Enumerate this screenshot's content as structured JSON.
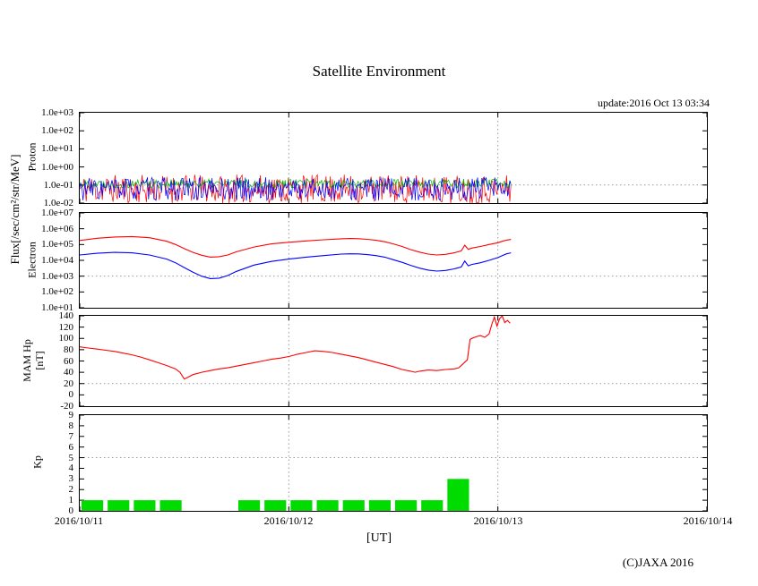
{
  "title": "Satellite Environment",
  "update_text": "update:2016 Oct 13 03:34",
  "copyright": "(C)JAXA 2016",
  "xlabel": "[UT]",
  "flux_axis_label": "Flux[/sec/cm²/str/MeV]",
  "x_ticks": [
    "2016/10/11",
    "2016/10/12",
    "2016/10/13",
    "2016/10/14"
  ],
  "colors": {
    "red": "#ff0000",
    "blue": "#0000ff",
    "green": "#00b400",
    "kp_bar": "#00dc00",
    "grid": "#999999",
    "axis": "#000000"
  },
  "chart_data": [
    {
      "id": "proton",
      "type": "line",
      "ylabel": "Proton",
      "yscale": "log",
      "ylim": [
        0.01,
        1000
      ],
      "ytick_labels": [
        "1.0e+03",
        "1.0e+02",
        "1.0e+01",
        "1.0e+00",
        "1.0e-01",
        "1.0e-02"
      ],
      "grid_y": [
        0.1
      ],
      "x_range_hours": [
        0,
        72
      ],
      "data_end_hour": 49.5,
      "series": [
        {
          "name": "proton-red",
          "color": "#ff0000",
          "noise": {
            "baseline": 0.06,
            "spread_decades": 1.6,
            "seed": 11
          }
        },
        {
          "name": "proton-green",
          "color": "#00b400",
          "noise": {
            "baseline": 0.12,
            "spread_decades": 0.5,
            "seed": 22
          }
        },
        {
          "name": "proton-blue",
          "color": "#0000ff",
          "noise": {
            "baseline": 0.06,
            "spread_decades": 1.3,
            "seed": 33
          }
        }
      ]
    },
    {
      "id": "electron",
      "type": "line",
      "ylabel": "Electron",
      "yscale": "log",
      "ylim": [
        10,
        10000000
      ],
      "ytick_labels": [
        "1.0e+07",
        "1.0e+06",
        "1.0e+05",
        "1.0e+04",
        "1.0e+03",
        "1.0e+02",
        "1.0e+01"
      ],
      "grid_y": [
        1000
      ],
      "x_range_hours": [
        0,
        72
      ],
      "series": [
        {
          "name": "electron-red",
          "color": "#ff0000",
          "x": [
            0,
            2,
            4,
            6,
            8,
            10,
            11,
            12,
            13,
            14,
            15,
            16,
            17,
            18,
            20,
            22,
            24,
            26,
            28,
            30,
            31,
            32,
            33,
            34,
            35,
            36,
            37,
            38,
            39,
            40,
            41,
            42,
            43,
            43.8,
            44.2,
            44.6,
            45,
            46,
            47,
            48,
            48.5,
            49,
            49.5
          ],
          "y": [
            180000,
            250000,
            300000,
            320000,
            270000,
            160000,
            100000,
            55000,
            32000,
            21000,
            16000,
            17000,
            22000,
            35000,
            70000,
            110000,
            140000,
            170000,
            200000,
            230000,
            240000,
            235000,
            215000,
            185000,
            150000,
            110000,
            75000,
            48000,
            33000,
            25000,
            22000,
            24000,
            30000,
            40000,
            90000,
            50000,
            60000,
            75000,
            100000,
            130000,
            160000,
            190000,
            210000
          ]
        },
        {
          "name": "electron-blue",
          "color": "#0000ff",
          "x": [
            0,
            2,
            4,
            6,
            8,
            10,
            11,
            12,
            13,
            14,
            15,
            16,
            17,
            18,
            20,
            22,
            24,
            26,
            28,
            30,
            31,
            32,
            33,
            34,
            35,
            36,
            37,
            38,
            39,
            40,
            41,
            42,
            43,
            43.8,
            44.2,
            44.6,
            45,
            46,
            47,
            48,
            48.5,
            49,
            49.5
          ],
          "y": [
            22000,
            28000,
            32000,
            30000,
            22000,
            12000,
            7000,
            3500,
            1800,
            1000,
            700,
            750,
            1100,
            2000,
            5000,
            8500,
            12000,
            16000,
            20000,
            25000,
            26000,
            25500,
            23000,
            20000,
            16000,
            11000,
            7500,
            4800,
            3200,
            2400,
            2100,
            2300,
            2900,
            3800,
            9000,
            4500,
            5500,
            7000,
            10000,
            15000,
            20000,
            26000,
            30000
          ]
        }
      ]
    },
    {
      "id": "hp",
      "type": "line",
      "ylabel": "MAM Hp",
      "ylabel2": "[nT]",
      "yscale": "linear",
      "ylim": [
        -20,
        140
      ],
      "ytick_labels": [
        "140",
        "120",
        "100",
        "80",
        "60",
        "40",
        "20",
        "0",
        "-20"
      ],
      "grid_y": [
        20
      ],
      "x_range_hours": [
        0,
        72
      ],
      "series": [
        {
          "name": "hp-red",
          "color": "#ff0000",
          "x": [
            0,
            1,
            2,
            3,
            4,
            5,
            6,
            7,
            8,
            9,
            10,
            11,
            11.5,
            12,
            12.5,
            13,
            14,
            15,
            16,
            17,
            18,
            19,
            20,
            21,
            22,
            23,
            24,
            25,
            26,
            27,
            28,
            29,
            30,
            31,
            32,
            33,
            34,
            35,
            36,
            37,
            38,
            38.5,
            39,
            40,
            41,
            42,
            43,
            43.5,
            44,
            44.5,
            44.8,
            45,
            45.5,
            46,
            46.5,
            47,
            47.3,
            47.6,
            47.9,
            48.2,
            48.5,
            48.8,
            49.1,
            49.4
          ],
          "y": [
            85,
            83,
            81,
            79,
            77,
            74,
            71,
            67,
            62,
            57,
            52,
            46,
            40,
            28,
            32,
            36,
            40,
            43,
            46,
            48,
            51,
            54,
            57,
            60,
            63,
            65,
            68,
            72,
            75,
            78,
            77,
            75,
            72,
            69,
            66,
            62,
            58,
            54,
            50,
            45,
            42,
            40,
            42,
            44,
            43,
            45,
            46,
            48,
            55,
            62,
            98,
            100,
            103,
            105,
            102,
            108,
            125,
            138,
            122,
            135,
            140,
            128,
            132,
            127
          ]
        }
      ]
    },
    {
      "id": "kp",
      "type": "bar",
      "ylabel": "Kp",
      "yscale": "linear",
      "ylim": [
        0,
        9
      ],
      "ytick_labels": [
        "9",
        "8",
        "7",
        "6",
        "5",
        "4",
        "3",
        "2",
        "1",
        "0"
      ],
      "grid_y": [
        5
      ],
      "bar_color": "#00dc00",
      "interval_hours": 3,
      "start_hour": 0,
      "x_range_hours": [
        0,
        72
      ],
      "values": [
        1,
        1,
        1,
        1,
        0,
        0,
        1,
        1,
        1,
        1,
        1,
        1,
        1,
        1,
        3
      ]
    }
  ]
}
